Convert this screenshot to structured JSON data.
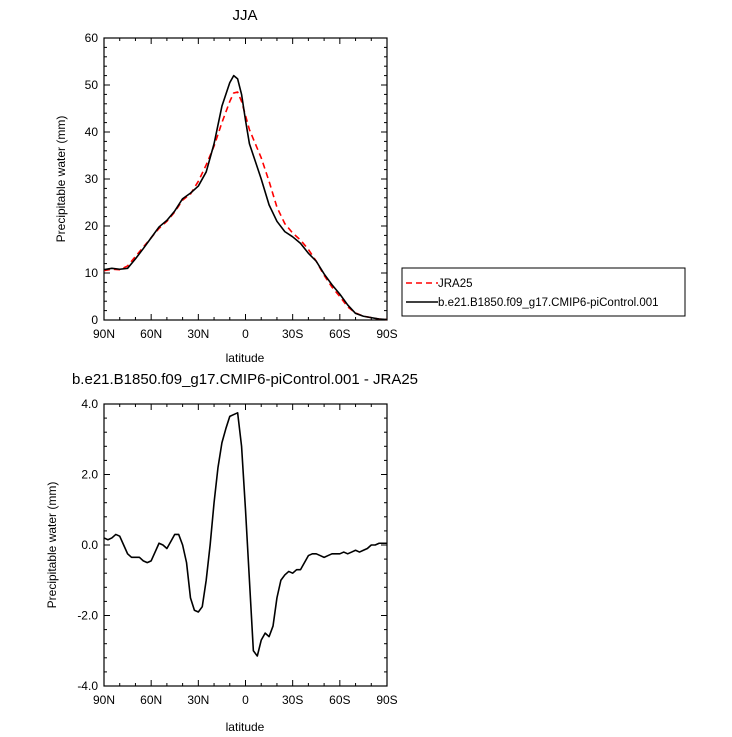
{
  "chart_data": [
    {
      "type": "line",
      "title": "JJA",
      "xlabel": "latitude",
      "ylabel": "Precipitable water (mm)",
      "xlim": [
        90,
        -90
      ],
      "ylim": [
        0,
        60
      ],
      "xticks": [
        90,
        60,
        30,
        0,
        -30,
        -60,
        -90
      ],
      "xtick_labels": [
        "90N",
        "60N",
        "30N",
        "0",
        "30S",
        "60S",
        "90S"
      ],
      "yticks": [
        0,
        10,
        20,
        30,
        40,
        50,
        60
      ],
      "ytick_labels": [
        "0",
        "10",
        "20",
        "30",
        "40",
        "50",
        "60"
      ],
      "grid": false,
      "legend_position": "right",
      "series": [
        {
          "name": "JRA25",
          "color": "#ff0000",
          "dash": "dashed",
          "x": [
            90,
            85,
            80,
            75,
            70,
            65,
            60,
            55,
            50,
            45,
            40,
            35,
            30,
            25,
            20,
            15,
            10,
            7.5,
            5,
            2.5,
            0,
            -2.5,
            -5,
            -10,
            -15,
            -20,
            -25,
            -30,
            -35,
            -40,
            -45,
            -50,
            -55,
            -60,
            -65,
            -70,
            -75,
            -80,
            -85,
            -90
          ],
          "y": [
            10.5,
            10.8,
            10.7,
            11.5,
            13.5,
            15.5,
            17.5,
            19.5,
            21,
            23,
            25.5,
            26.8,
            29.5,
            33,
            37,
            42,
            46.5,
            48.3,
            48.5,
            46.5,
            43.5,
            40.5,
            38.5,
            34.5,
            29.5,
            24,
            20.5,
            18.5,
            17,
            15,
            12.5,
            9.5,
            7,
            5,
            2.8,
            1.5,
            0.8,
            0.5,
            0.2,
            0.1
          ]
        },
        {
          "name": "b.e21.B1850.f09_g17.CMIP6-piControl.001",
          "color": "#000000",
          "dash": "solid",
          "x": [
            90,
            85,
            80,
            75,
            70,
            65,
            60,
            55,
            50,
            45,
            40,
            35,
            30,
            25,
            20,
            15,
            10,
            7.5,
            5,
            2.5,
            0,
            -2.5,
            -5,
            -10,
            -15,
            -20,
            -25,
            -30,
            -35,
            -40,
            -45,
            -50,
            -55,
            -60,
            -65,
            -70,
            -75,
            -80,
            -85,
            -90
          ],
          "y": [
            10.7,
            11.0,
            10.8,
            11.0,
            13.0,
            15.2,
            17.5,
            19.8,
            21.2,
            23.2,
            25.8,
            27,
            28.5,
            31.5,
            37.5,
            45.5,
            50.5,
            52,
            51.3,
            48,
            42.5,
            37.5,
            35,
            30,
            24.5,
            21,
            18.8,
            17.7,
            16.3,
            14.2,
            12.5,
            9.8,
            7.5,
            5.5,
            3.2,
            1.4,
            0.8,
            0.5,
            0.2,
            0.1
          ]
        }
      ]
    },
    {
      "type": "line",
      "title": "b.e21.B1850.f09_g17.CMIP6-piControl.001 - JRA25",
      "xlabel": "latitude",
      "ylabel": "Precipitable water (mm)",
      "xlim": [
        90,
        -90
      ],
      "ylim": [
        -4,
        4
      ],
      "xticks": [
        90,
        60,
        30,
        0,
        -30,
        -60,
        -90
      ],
      "xtick_labels": [
        "90N",
        "60N",
        "30N",
        "0",
        "30S",
        "60S",
        "90S"
      ],
      "yticks": [
        -4,
        -2,
        0,
        2,
        4
      ],
      "ytick_labels": [
        "-4.0",
        "-2.0",
        "0.0",
        "2.0",
        "4.0"
      ],
      "grid": false,
      "series": [
        {
          "color": "#000000",
          "dash": "solid",
          "x": [
            90,
            87.5,
            85,
            82.5,
            80,
            77.5,
            75,
            72.5,
            70,
            67.5,
            65,
            62.5,
            60,
            57.5,
            55,
            52.5,
            50,
            47.5,
            45,
            42.5,
            40,
            37.5,
            35,
            32.5,
            30,
            27.5,
            25,
            22.5,
            20,
            17.5,
            15,
            12.5,
            10,
            7.5,
            5,
            2.5,
            0,
            -2.5,
            -5,
            -7.5,
            -10,
            -12.5,
            -15,
            -17.5,
            -20,
            -22.5,
            -25,
            -27.5,
            -30,
            -32.5,
            -35,
            -37.5,
            -40,
            -42.5,
            -45,
            -47.5,
            -50,
            -52.5,
            -55,
            -57.5,
            -60,
            -62.5,
            -65,
            -67.5,
            -70,
            -72.5,
            -75,
            -77.5,
            -80,
            -82.5,
            -85,
            -87.5,
            -90
          ],
          "y": [
            0.2,
            0.15,
            0.2,
            0.3,
            0.25,
            0.0,
            -0.25,
            -0.35,
            -0.35,
            -0.35,
            -0.45,
            -0.5,
            -0.45,
            -0.2,
            0.05,
            0.0,
            -0.1,
            0.1,
            0.3,
            0.3,
            0.0,
            -0.5,
            -1.5,
            -1.85,
            -1.9,
            -1.75,
            -1.0,
            0.0,
            1.2,
            2.2,
            2.9,
            3.3,
            3.65,
            3.7,
            3.75,
            2.8,
            1.0,
            -1.0,
            -3.0,
            -3.15,
            -2.7,
            -2.5,
            -2.6,
            -2.3,
            -1.5,
            -1.0,
            -0.85,
            -0.75,
            -0.8,
            -0.7,
            -0.7,
            -0.5,
            -0.3,
            -0.25,
            -0.25,
            -0.3,
            -0.35,
            -0.3,
            -0.25,
            -0.25,
            -0.25,
            -0.2,
            -0.25,
            -0.2,
            -0.15,
            -0.2,
            -0.15,
            -0.1,
            0.0,
            0.0,
            0.05,
            0.05,
            0.05
          ]
        }
      ]
    }
  ]
}
